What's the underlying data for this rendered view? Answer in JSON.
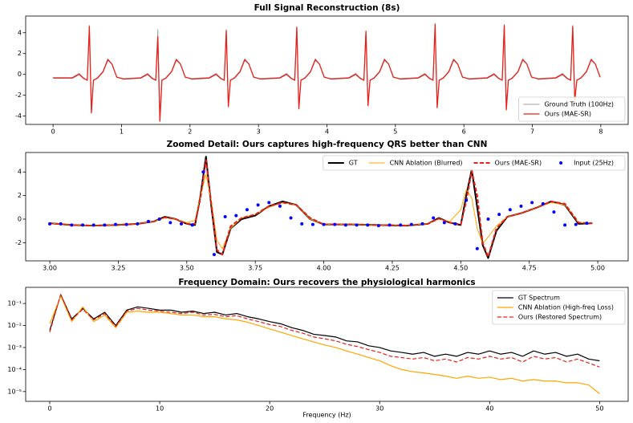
{
  "chart_data": [
    {
      "type": "line",
      "title": "Full Signal Reconstruction (8s)",
      "x": [
        0.0,
        0.28,
        0.38,
        0.45,
        0.5,
        0.53,
        0.56,
        0.59,
        0.65,
        0.73,
        0.8,
        0.86,
        0.93,
        1.03,
        1.28,
        1.38,
        1.45,
        1.5,
        1.53,
        1.56,
        1.59,
        1.65,
        1.73,
        1.8,
        1.86,
        1.93,
        2.03,
        2.28,
        2.38,
        2.45,
        2.5,
        2.53,
        2.56,
        2.59,
        2.65,
        2.73,
        2.8,
        2.86,
        2.93,
        3.03,
        3.31,
        3.41,
        3.48,
        3.53,
        3.56,
        3.59,
        3.62,
        3.68,
        3.76,
        3.83,
        3.89,
        3.96,
        4.06,
        4.32,
        4.42,
        4.49,
        4.54,
        4.57,
        4.6,
        4.63,
        4.69,
        4.77,
        4.84,
        4.9,
        4.97,
        5.07,
        5.33,
        5.43,
        5.5,
        5.55,
        5.58,
        5.61,
        5.64,
        5.7,
        5.78,
        5.85,
        5.91,
        5.98,
        6.08,
        6.34,
        6.44,
        6.51,
        6.56,
        6.59,
        6.62,
        6.65,
        6.71,
        6.79,
        6.86,
        6.92,
        6.99,
        7.09,
        7.34,
        7.44,
        7.51,
        7.56,
        7.59,
        7.62,
        7.65,
        7.71,
        7.79,
        7.86,
        7.92,
        7.99
      ],
      "series": [
        {
          "name": "Ground Truth (100Hz)",
          "color": "#a0a0a0",
          "linewidth": 1,
          "style": "solid",
          "values": [
            -0.3,
            -0.3,
            0.1,
            -0.35,
            -0.6,
            4.7,
            -3.6,
            -0.6,
            -0.3,
            0.3,
            1.5,
            1.0,
            -0.3,
            -0.4,
            -0.3,
            0.1,
            -0.35,
            -0.6,
            4.3,
            -4.4,
            -0.6,
            -0.3,
            0.3,
            1.5,
            1.0,
            -0.3,
            -0.4,
            -0.3,
            0.1,
            -0.35,
            -0.6,
            4.3,
            -3.0,
            -0.6,
            -0.3,
            0.3,
            1.5,
            1.0,
            -0.3,
            -0.4,
            -0.3,
            0.1,
            -0.35,
            -0.6,
            4.6,
            -3.2,
            -0.6,
            -0.3,
            0.3,
            1.5,
            1.0,
            -0.3,
            -0.4,
            -0.3,
            0.1,
            -0.35,
            -0.6,
            4.2,
            -2.9,
            -0.6,
            -0.3,
            0.3,
            1.5,
            1.0,
            -0.3,
            -0.4,
            -0.3,
            0.1,
            -0.35,
            -0.6,
            4.9,
            -3.1,
            -0.6,
            -0.3,
            0.3,
            1.5,
            1.0,
            -0.3,
            -0.4,
            -0.3,
            0.1,
            -0.35,
            -0.6,
            4.8,
            -3.3,
            -0.6,
            -0.3,
            0.3,
            1.5,
            1.0,
            -0.3,
            -0.4,
            -0.3,
            0.1,
            -0.35,
            -0.6,
            4.7,
            -2.4,
            -0.6,
            -0.3,
            0.3,
            1.5,
            1.0,
            -0.3
          ]
        },
        {
          "name": "Ours (MAE-SR)",
          "color": "#e8201a",
          "linewidth": 1.3,
          "style": "solid",
          "values": [
            -0.35,
            -0.35,
            0.0,
            -0.4,
            -0.55,
            4.6,
            -3.7,
            -0.55,
            -0.35,
            0.25,
            1.4,
            1.0,
            -0.25,
            -0.45,
            -0.35,
            0.0,
            -0.4,
            -0.55,
            3.6,
            -4.5,
            -0.55,
            -0.35,
            0.25,
            1.4,
            1.0,
            -0.25,
            -0.45,
            -0.35,
            0.0,
            -0.4,
            -0.55,
            4.2,
            -3.1,
            -0.55,
            -0.35,
            0.25,
            1.4,
            1.0,
            -0.25,
            -0.45,
            -0.35,
            0.0,
            -0.4,
            -0.55,
            4.5,
            -3.3,
            -0.55,
            -0.35,
            0.25,
            1.4,
            1.0,
            -0.25,
            -0.45,
            -0.35,
            0.0,
            -0.4,
            -0.55,
            4.1,
            -3.0,
            -0.55,
            -0.35,
            0.25,
            1.4,
            1.0,
            -0.25,
            -0.45,
            -0.35,
            0.0,
            -0.4,
            -0.55,
            4.8,
            -3.2,
            -0.55,
            -0.35,
            0.25,
            1.4,
            1.0,
            -0.25,
            -0.45,
            -0.35,
            0.0,
            -0.4,
            -0.55,
            4.7,
            -3.4,
            -0.55,
            -0.35,
            0.25,
            1.4,
            1.0,
            -0.25,
            -0.45,
            -0.35,
            0.0,
            -0.4,
            -0.55,
            4.6,
            -2.5,
            -0.55,
            -0.35,
            0.25,
            1.4,
            1.0,
            -0.25
          ]
        }
      ],
      "xlim": [
        -0.4,
        8.4
      ],
      "xticks": [
        0,
        1,
        2,
        3,
        4,
        5,
        6,
        7,
        8
      ],
      "ylim": [
        -4.8,
        5.6
      ],
      "yticks": [
        -4,
        -2,
        0,
        2,
        4
      ],
      "legend": "lower right",
      "legend_columns": 1
    },
    {
      "type": "line",
      "title": "Zoomed Detail: Ours captures high-frequency QRS better than CNN",
      "x": [
        3.0,
        3.08,
        3.16,
        3.24,
        3.32,
        3.38,
        3.42,
        3.46,
        3.5,
        3.53,
        3.55,
        3.57,
        3.59,
        3.61,
        3.63,
        3.66,
        3.7,
        3.75,
        3.8,
        3.85,
        3.9,
        3.95,
        4.0,
        4.1,
        4.2,
        4.3,
        4.38,
        4.42,
        4.46,
        4.5,
        4.52,
        4.54,
        4.56,
        4.58,
        4.6,
        4.63,
        4.67,
        4.72,
        4.78,
        4.83,
        4.88,
        4.93,
        4.98
      ],
      "series": [
        {
          "name": "GT",
          "color": "#000000",
          "linewidth": 2,
          "style": "solid",
          "values": [
            -0.35,
            -0.5,
            -0.55,
            -0.5,
            -0.4,
            -0.2,
            0.2,
            0.0,
            -0.4,
            -0.5,
            2.0,
            5.3,
            1.0,
            -2.8,
            -3.0,
            -0.8,
            0.0,
            0.3,
            1.1,
            1.5,
            1.2,
            0.0,
            -0.45,
            -0.45,
            -0.5,
            -0.55,
            -0.4,
            0.1,
            -0.3,
            -0.5,
            2.0,
            4.2,
            1.0,
            -2.2,
            -3.3,
            -1.0,
            0.2,
            0.5,
            1.0,
            1.5,
            1.2,
            -0.4,
            -0.35
          ]
        },
        {
          "name": "CNN Ablation (Blurred)",
          "color": "#ffa500",
          "linewidth": 1,
          "style": "solid",
          "values": [
            -0.35,
            -0.5,
            -0.55,
            -0.5,
            -0.4,
            -0.2,
            0.1,
            0.0,
            -0.3,
            -0.1,
            2.0,
            3.8,
            1.5,
            -1.8,
            -2.5,
            -0.8,
            0.1,
            0.4,
            1.0,
            1.4,
            1.2,
            0.0,
            -0.45,
            -0.45,
            -0.5,
            -0.5,
            -0.4,
            0.0,
            -0.2,
            0.8,
            2.5,
            1.8,
            -0.8,
            -2.1,
            -1.5,
            -0.6,
            0.2,
            0.5,
            1.0,
            1.4,
            1.2,
            -0.3,
            -0.35
          ]
        },
        {
          "name": "Ours (MAE-SR)",
          "color": "#e8201a",
          "linewidth": 2,
          "style": "dashed",
          "values": [
            -0.35,
            -0.5,
            -0.55,
            -0.5,
            -0.4,
            -0.2,
            0.15,
            0.0,
            -0.4,
            -0.4,
            1.8,
            5.0,
            1.2,
            -2.6,
            -3.0,
            -0.6,
            0.1,
            0.4,
            1.1,
            1.4,
            1.2,
            0.1,
            -0.45,
            -0.45,
            -0.5,
            -0.55,
            -0.4,
            0.05,
            -0.3,
            -0.45,
            1.5,
            4.1,
            2.0,
            -2.0,
            -3.2,
            -0.8,
            0.2,
            0.5,
            1.0,
            1.5,
            1.3,
            -0.3,
            -0.35
          ]
        },
        {
          "name": "Input (25Hz)",
          "color": "#0000ff",
          "style": "points",
          "x": [
            3.0,
            3.04,
            3.08,
            3.12,
            3.16,
            3.2,
            3.24,
            3.28,
            3.32,
            3.36,
            3.4,
            3.44,
            3.48,
            3.52,
            3.56,
            3.6,
            3.64,
            3.68,
            3.72,
            3.76,
            3.8,
            3.84,
            3.88,
            3.92,
            3.96,
            4.0,
            4.04,
            4.08,
            4.12,
            4.16,
            4.2,
            4.24,
            4.28,
            4.32,
            4.36,
            4.4,
            4.44,
            4.48,
            4.52,
            4.56,
            4.6,
            4.64,
            4.68,
            4.72,
            4.76,
            4.8,
            4.84,
            4.88,
            4.92,
            4.96
          ],
          "values": [
            -0.4,
            -0.4,
            -0.5,
            -0.5,
            -0.5,
            -0.5,
            -0.45,
            -0.45,
            -0.4,
            -0.2,
            0.0,
            -0.3,
            -0.4,
            -0.5,
            4.0,
            -3.0,
            0.2,
            0.3,
            0.8,
            1.2,
            1.4,
            1.1,
            0.1,
            -0.4,
            -0.45,
            -0.45,
            -0.45,
            -0.5,
            -0.5,
            -0.5,
            -0.55,
            -0.5,
            -0.5,
            -0.45,
            -0.4,
            0.1,
            -0.3,
            -0.4,
            1.6,
            -2.5,
            0.0,
            0.4,
            0.8,
            1.1,
            1.4,
            1.3,
            0.6,
            -0.5,
            -0.45,
            -0.35
          ]
        }
      ],
      "xlim": [
        2.912,
        5.111
      ],
      "xticks": [
        {
          "value": 3,
          "label": "3.00"
        },
        {
          "value": 3.25,
          "label": "3.25"
        },
        {
          "value": 3.5,
          "label": "3.50"
        },
        {
          "value": 3.75,
          "label": "3.75"
        },
        {
          "value": 4,
          "label": "4.00"
        },
        {
          "value": 4.25,
          "label": "4.25"
        },
        {
          "value": 4.5,
          "label": "4.50"
        },
        {
          "value": 4.75,
          "label": "4.75"
        },
        {
          "value": 5,
          "label": "5.00"
        }
      ],
      "ylim": [
        -3.54,
        5.65
      ],
      "yticks": [
        -2,
        0,
        2,
        4
      ],
      "legend": "upper right",
      "legend_columns": 4
    },
    {
      "type": "line",
      "title": "Frequency Domain: Ours recovers the physiological harmonics",
      "xlabel": "Frequency (Hz)",
      "x": [
        0,
        1,
        2,
        3,
        4,
        5,
        6,
        7,
        8,
        9,
        10,
        11,
        12,
        13,
        14,
        15,
        16,
        17,
        18,
        19,
        20,
        21,
        22,
        23,
        24,
        25,
        26,
        27,
        28,
        29,
        30,
        31,
        32,
        33,
        34,
        35,
        36,
        37,
        38,
        39,
        40,
        41,
        42,
        43,
        44,
        45,
        46,
        47,
        48,
        49,
        50
      ],
      "series": [
        {
          "name": "GT Spectrum",
          "color": "#000000",
          "linewidth": 1.2,
          "style": "solid",
          "values": [
            0.006,
            0.25,
            0.02,
            0.06,
            0.02,
            0.04,
            0.01,
            0.05,
            0.07,
            0.06,
            0.05,
            0.05,
            0.04,
            0.045,
            0.035,
            0.04,
            0.03,
            0.035,
            0.025,
            0.02,
            0.015,
            0.012,
            0.008,
            0.006,
            0.004,
            0.0035,
            0.003,
            0.002,
            0.0018,
            0.0012,
            0.001,
            0.0007,
            0.0006,
            0.0005,
            0.0006,
            0.0004,
            0.0005,
            0.0004,
            0.0006,
            0.0005,
            0.0007,
            0.0005,
            0.0006,
            0.0004,
            0.0007,
            0.0005,
            0.0006,
            0.0004,
            0.0005,
            0.0003,
            0.00025
          ]
        },
        {
          "name": "CNN Ablation (High-freq Loss)",
          "color": "#ffa500",
          "linewidth": 1.2,
          "style": "solid",
          "values": [
            0.012,
            0.22,
            0.015,
            0.07,
            0.015,
            0.03,
            0.008,
            0.04,
            0.045,
            0.04,
            0.04,
            0.035,
            0.03,
            0.03,
            0.025,
            0.025,
            0.02,
            0.018,
            0.014,
            0.01,
            0.007,
            0.005,
            0.0035,
            0.0025,
            0.0018,
            0.0013,
            0.001,
            0.0007,
            0.0005,
            0.00035,
            0.00025,
            0.00015,
            0.0001,
            8e-05,
            7e-05,
            6e-05,
            5e-05,
            4e-05,
            5e-05,
            4e-05,
            4.5e-05,
            3.5e-05,
            4e-05,
            3e-05,
            3.5e-05,
            3e-05,
            3e-05,
            2.5e-05,
            2.5e-05,
            2e-05,
            8e-06
          ]
        },
        {
          "name": "Ours (Restored Spectrum)",
          "color": "#e8201a",
          "linewidth": 1.2,
          "style": "dashed",
          "values": [
            0.005,
            0.26,
            0.018,
            0.055,
            0.018,
            0.035,
            0.009,
            0.045,
            0.06,
            0.05,
            0.045,
            0.04,
            0.035,
            0.04,
            0.03,
            0.032,
            0.025,
            0.028,
            0.02,
            0.015,
            0.011,
            0.009,
            0.006,
            0.0045,
            0.003,
            0.0025,
            0.002,
            0.0014,
            0.0011,
            0.0008,
            0.0006,
            0.0004,
            0.00035,
            0.0003,
            0.00035,
            0.00025,
            0.0003,
            0.00022,
            0.00035,
            0.0003,
            0.0004,
            0.0003,
            0.00035,
            0.00022,
            0.0004,
            0.0003,
            0.00035,
            0.00022,
            0.0003,
            0.0002,
            0.00013
          ]
        }
      ],
      "xlim": [
        -2.19,
        52.6
      ],
      "xticks": [
        0,
        10,
        20,
        30,
        40,
        50
      ],
      "ylim": [
        3.6e-06,
        0.54
      ],
      "yscale": "log",
      "yticks": [
        {
          "value": 1e-05,
          "label": "10⁻⁵"
        },
        {
          "value": 0.0001,
          "label": "10⁻⁴"
        },
        {
          "value": 0.001,
          "label": "10⁻³"
        },
        {
          "value": 0.01,
          "label": "10⁻²"
        },
        {
          "value": 0.1,
          "label": "10⁻¹"
        }
      ],
      "legend": "upper right",
      "legend_columns": 1
    }
  ]
}
